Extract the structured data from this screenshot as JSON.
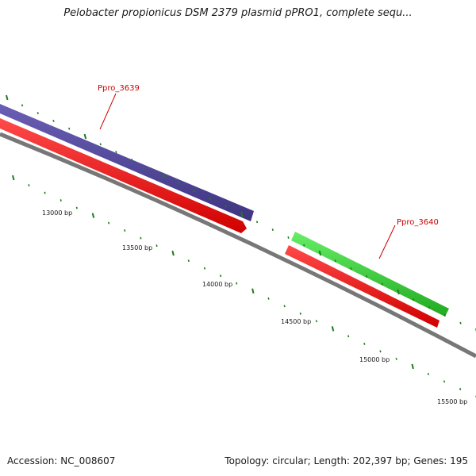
{
  "title": "Pelobacter propionicus DSM 2379 plasmid pPRO1, complete sequ...",
  "footer": {
    "accession": "Accession: NC_008607",
    "topology": "Topology: circular; Length: 202,397 bp; Genes: 195"
  },
  "colors": {
    "forward_gene": "#4b3f8f",
    "reverse_gene": "#ee1111",
    "other_gene": "#33cc33",
    "backbone": "#777777",
    "ticks": "#1f7a1f",
    "label": "#cc0000"
  },
  "scale_labels": [
    "13000 bp",
    "13500 bp",
    "14000 bp",
    "14500 bp",
    "15000 bp",
    "15500 bp"
  ],
  "genes": [
    {
      "name": "Ppro_3639",
      "color": "forward_gene"
    },
    {
      "name": "Ppro_3640",
      "color": "other_gene"
    }
  ]
}
